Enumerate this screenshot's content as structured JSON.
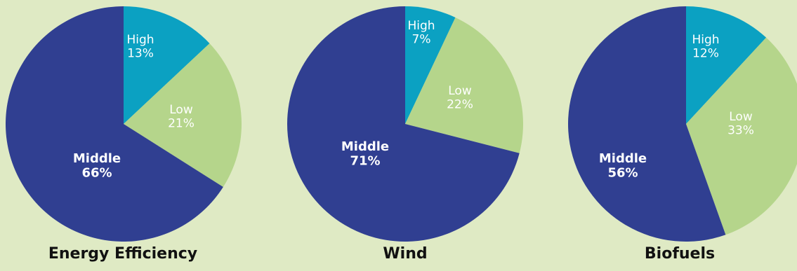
{
  "chart_data": [
    {
      "type": "pie",
      "title": "Energy Efficiency",
      "categories": [
        "High",
        "Low",
        "Middle"
      ],
      "values": [
        13,
        21,
        66
      ],
      "value_labels": [
        "13%",
        "21%",
        "66%"
      ]
    },
    {
      "type": "pie",
      "title": "Wind",
      "categories": [
        "High",
        "Low",
        "Middle"
      ],
      "values": [
        7,
        22,
        71
      ],
      "value_labels": [
        "7%",
        "22%",
        "71%"
      ]
    },
    {
      "type": "pie",
      "title": "Biofuels",
      "categories": [
        "High",
        "Low",
        "Middle"
      ],
      "values": [
        12,
        33,
        56
      ],
      "value_labels": [
        "12%",
        "33%",
        "56%"
      ]
    }
  ],
  "colors": {
    "High": "#0ba1c2",
    "Low": "#b5d58b",
    "Middle": "#303f91",
    "background": "#dfeac4"
  }
}
